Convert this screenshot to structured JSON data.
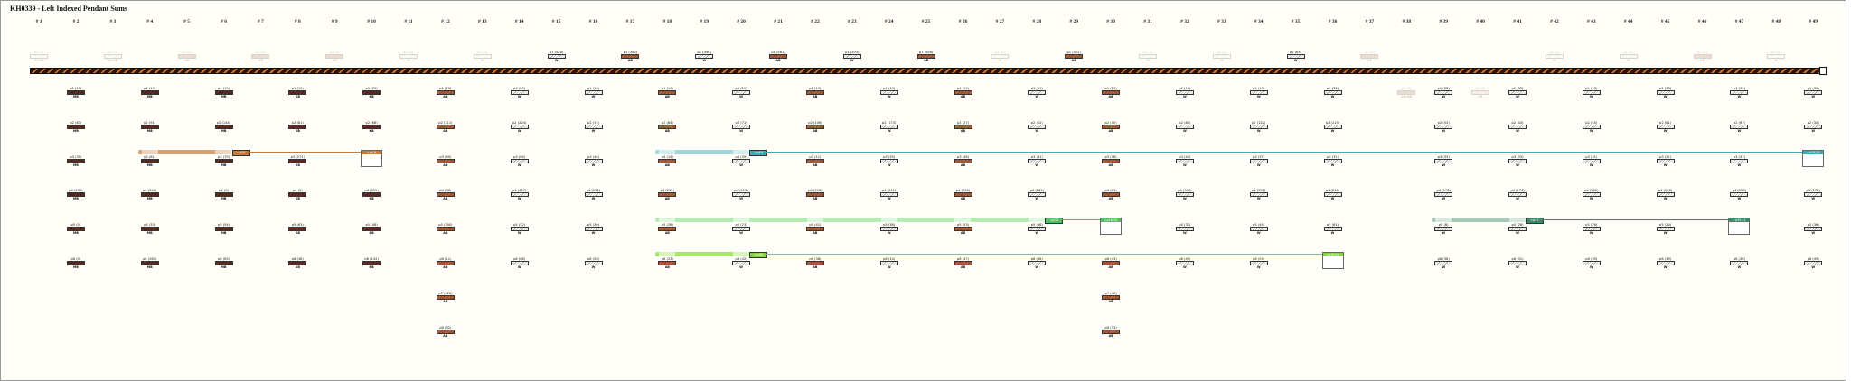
{
  "title": "KH0339 - Left Indexed Pendant Sums",
  "column_count": 49,
  "column_prefix": "#",
  "colors": {
    "MB": "#4a2418",
    "KB": "#5c1f1f",
    "AB": "#9a4e2a",
    "W": "#ffffff",
    "PK": "#f08a8a",
    "main_cord": "#2a1408",
    "main_cord_stripe": "#c8733a"
  },
  "top_pendants": [
    {
      "col": 1,
      "label": "p1 (0)",
      "color": "W",
      "color_label": "W:MB",
      "faint": true
    },
    {
      "col": 3,
      "label": "p1 (0)",
      "color": "W",
      "color_label": "W:MB",
      "faint": true
    },
    {
      "col": 5,
      "label": "p1 (0)",
      "color": "AB",
      "color_label": "AB",
      "faint": true
    },
    {
      "col": 7,
      "label": "p1 (0)",
      "color": "AB",
      "color_label": "AB",
      "faint": true
    },
    {
      "col": 9,
      "label": "p1 (0)",
      "color": "AB",
      "color_label": "AB",
      "faint": true
    },
    {
      "col": 11,
      "label": "p1 (0)",
      "color": "W",
      "color_label": "W",
      "faint": true
    },
    {
      "col": 13,
      "label": "p1 (0)",
      "color": "W",
      "color_label": "W",
      "faint": true
    },
    {
      "col": 15,
      "label": "p1 (426)",
      "color": "W",
      "color_label": "W"
    },
    {
      "col": 17,
      "label": "p1 (390)",
      "color": "AB",
      "color_label": "AB"
    },
    {
      "col": 19,
      "label": "p1 (406)",
      "color": "W",
      "color_label": "W"
    },
    {
      "col": 21,
      "label": "p1 (481)",
      "color": "AB",
      "color_label": "AB"
    },
    {
      "col": 23,
      "label": "p1 (503)",
      "color": "W",
      "color_label": "W"
    },
    {
      "col": 25,
      "label": "p1 (456)",
      "color": "AB",
      "color_label": "AB"
    },
    {
      "col": 27,
      "label": "p1 (0)",
      "color": "W",
      "color_label": "W",
      "faint": true
    },
    {
      "col": 29,
      "label": "p1 (522)",
      "color": "AB",
      "color_label": "AB"
    },
    {
      "col": 31,
      "label": "p1 (0)",
      "color": "W",
      "color_label": "W",
      "faint": true
    },
    {
      "col": 33,
      "label": "p1 (0)",
      "color": "W",
      "color_label": "W",
      "faint": true
    },
    {
      "col": 35,
      "label": "p1 (64)",
      "color": "W",
      "color_label": "W"
    },
    {
      "col": 37,
      "label": "p1 (0)",
      "color": "AB",
      "color_label": "AB",
      "faint": true
    },
    {
      "col": 42,
      "label": "p1 (0)",
      "color": "W",
      "color_label": "W",
      "faint": true
    },
    {
      "col": 44,
      "label": "p1 (0)",
      "color": "W",
      "color_label": "W",
      "faint": true
    },
    {
      "col": 46,
      "label": "p1 (0)",
      "color": "AB",
      "color_label": "AB",
      "faint": true
    },
    {
      "col": 48,
      "label": "p1 (0)",
      "color": "W",
      "color_label": "W",
      "faint": true
    }
  ],
  "pendant_columns": [
    {
      "col": 2,
      "color": "MB",
      "values": [
        19,
        83,
        35,
        230,
        0,
        0
      ]
    },
    {
      "col": 4,
      "color": "MB",
      "values": [
        19,
        91,
        61,
        246,
        33,
        264
      ]
    },
    {
      "col": 6,
      "color": "MB",
      "values": [
        19,
        144,
        79,
        0,
        54,
        63
      ]
    },
    {
      "col": 8,
      "color": "KB",
      "values": [
        19,
        81,
        271,
        0,
        63,
        38
      ]
    },
    {
      "col": 10,
      "color": "KB",
      "values": [
        25,
        68,
        111,
        315,
        48,
        142
      ]
    },
    {
      "col": 12,
      "color": "AB",
      "values": [
        25,
        111,
        60,
        38,
        300,
        11,
        128,
        32
      ]
    },
    {
      "col": 14,
      "color": "W",
      "values": [
        25,
        224,
        64,
        447,
        52,
        68
      ]
    },
    {
      "col": 16,
      "color": "W",
      "values": [
        19,
        74,
        44,
        211,
        30,
        28
      ]
    },
    {
      "col": 18,
      "color": "AB",
      "values": [
        19,
        84,
        14,
        212,
        28,
        23
      ]
    },
    {
      "col": 20,
      "color": "W",
      "values": [
        19,
        71,
        39,
        212,
        23,
        42
      ]
    },
    {
      "col": 22,
      "color": "AB",
      "values": [
        19,
        106,
        11,
        226,
        41,
        38
      ]
    },
    {
      "col": 24,
      "color": "W",
      "values": [
        19,
        173,
        35,
        211,
        38,
        14
      ]
    },
    {
      "col": 26,
      "color": "AB",
      "values": [
        19,
        27,
        46,
        258,
        53,
        47
      ]
    },
    {
      "col": 28,
      "color": "W",
      "values": [
        19,
        52,
        41,
        263,
        46,
        46
      ]
    },
    {
      "col": 30,
      "color": "AB",
      "values": [
        19,
        30,
        38,
        11,
        279,
        43,
        46,
        33
      ]
    },
    {
      "col": 32,
      "color": "W",
      "values": [
        19,
        80,
        44,
        306,
        33,
        49
      ]
    },
    {
      "col": 34,
      "color": "W",
      "values": [
        19,
        122,
        37,
        332,
        44,
        55
      ]
    },
    {
      "col": 36,
      "color": "W",
      "values": [
        31,
        115,
        31,
        244,
        61,
        65
      ]
    },
    {
      "col": 38,
      "color": "AB",
      "color_label": "AB:MB",
      "values": [
        0
      ],
      "faint": true
    },
    {
      "col": 39,
      "color": "W",
      "values": [
        33,
        53,
        33,
        178,
        8,
        38
      ]
    },
    {
      "col": 40,
      "color": "PK",
      "values": [
        0
      ],
      "faint": true
    },
    {
      "col": 41,
      "color": "W",
      "values": [
        33,
        43,
        33,
        174,
        28,
        31
      ]
    },
    {
      "col": 43,
      "color": "W",
      "values": [
        33,
        55,
        31,
        162,
        26,
        39
      ]
    },
    {
      "col": 45,
      "color": "W",
      "values": [
        33,
        61,
        21,
        208,
        26,
        39
      ]
    },
    {
      "col": 47,
      "color": "W",
      "values": [
        33,
        67,
        47,
        228,
        344,
        36
      ],
      "overrides": {
        "4": "PK"
      }
    },
    {
      "col": 49,
      "color": "W",
      "values": [
        33,
        35,
        53,
        178,
        36,
        49
      ]
    }
  ],
  "sum_groups": [
    {
      "from": 4,
      "to": 6,
      "row": 3,
      "target": 10,
      "color": "#d9a070",
      "dark": "#c87832",
      "source_tag": "=p10",
      "target_tag": "=p4,6"
    },
    {
      "from": 18,
      "to": 20,
      "row": 3,
      "target": 49,
      "color": "#9fd8da",
      "dark": "#3aaab4",
      "source_tag": "=p49",
      "target_tag": "=p18,20"
    },
    {
      "from": 18,
      "to": 28,
      "row": 5,
      "target": 30,
      "color": "#b4eab4",
      "dark": "#4cc060",
      "source_tag": "=p30",
      "target_tag": "=p18-28"
    },
    {
      "from": 18,
      "to": 20,
      "row": 6,
      "target": 36,
      "color": "#a8e868",
      "dark": "#84d040",
      "source_tag": "=p36",
      "target_tag": "=p18,20"
    },
    {
      "from": 39,
      "to": 41,
      "row": 5,
      "target": 47,
      "color": "#a8c8b8",
      "dark": "#3a8a6a",
      "source_tag": "=p47",
      "target_tag": "=p39,41"
    }
  ]
}
